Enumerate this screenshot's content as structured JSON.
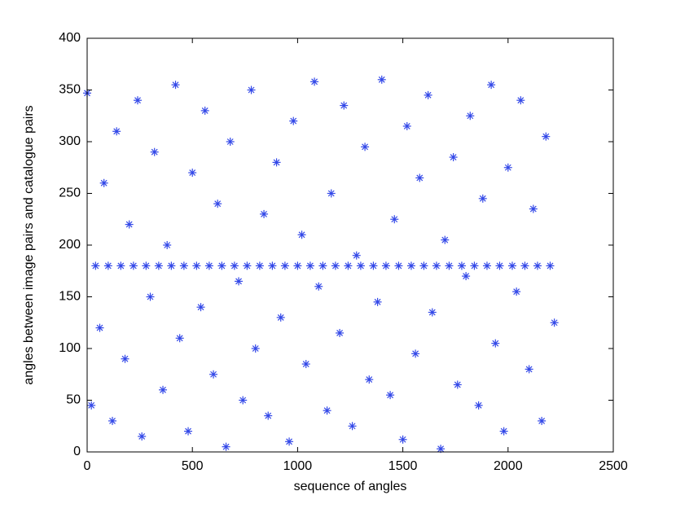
{
  "chart_data": {
    "type": "scatter",
    "xlabel": "sequence of angles",
    "ylabel": "angles between image pairs and catalogue pairs",
    "color": "#3348e8",
    "marker": "asterisk",
    "x": [
      0,
      20,
      40,
      60,
      80,
      100,
      120,
      140,
      160,
      180,
      200,
      220,
      240,
      260,
      280,
      300,
      320,
      340,
      360,
      380,
      400,
      420,
      440,
      460,
      480,
      500,
      520,
      540,
      560,
      580,
      600,
      620,
      640,
      660,
      680,
      700,
      720,
      740,
      760,
      780,
      800,
      820,
      840,
      860,
      880,
      900,
      920,
      940,
      960,
      980,
      1000,
      1020,
      1040,
      1060,
      1080,
      1100,
      1120,
      1140,
      1160,
      1180,
      1200,
      1220,
      1240,
      1260,
      1280,
      1300,
      1320,
      1340,
      1360,
      1380,
      1400,
      1420,
      1440,
      1460,
      1480,
      1500,
      1520,
      1540,
      1560,
      1580,
      1600,
      1620,
      1640,
      1660,
      1680,
      1700,
      1720,
      1740,
      1760,
      1780,
      1800,
      1820,
      1840,
      1860,
      1880,
      1900,
      1920,
      1940,
      1960,
      1980,
      2000,
      2020,
      2040,
      2060,
      2080,
      2100,
      2120,
      2140,
      2160,
      2180,
      2200,
      2220
    ],
    "y": [
      347,
      45,
      180,
      120,
      260,
      180,
      30,
      310,
      180,
      90,
      220,
      180,
      340,
      15,
      180,
      150,
      290,
      180,
      60,
      200,
      180,
      355,
      110,
      180,
      20,
      270,
      180,
      140,
      330,
      180,
      75,
      240,
      180,
      5,
      300,
      180,
      165,
      50,
      180,
      350,
      100,
      180,
      230,
      35,
      180,
      280,
      130,
      180,
      10,
      320,
      180,
      210,
      85,
      180,
      358,
      160,
      180,
      40,
      250,
      180,
      115,
      335,
      180,
      25,
      190,
      180,
      295,
      70,
      180,
      145,
      360,
      180,
      55,
      225,
      180,
      12,
      315,
      180,
      95,
      265,
      180,
      345,
      135,
      180,
      3,
      205,
      180,
      285,
      65,
      180,
      170,
      325,
      180,
      45,
      245,
      180,
      355,
      105,
      180,
      20,
      275,
      180,
      155,
      340,
      180,
      80,
      235,
      180,
      30,
      305,
      180,
      125
    ],
    "xlim": [
      0,
      2500
    ],
    "xticks": [
      0,
      500,
      1000,
      1500,
      2000,
      2500
    ],
    "ylim": [
      0,
      400
    ],
    "yticks": [
      0,
      50,
      100,
      150,
      200,
      250,
      300,
      350,
      400
    ],
    "grid": false
  }
}
